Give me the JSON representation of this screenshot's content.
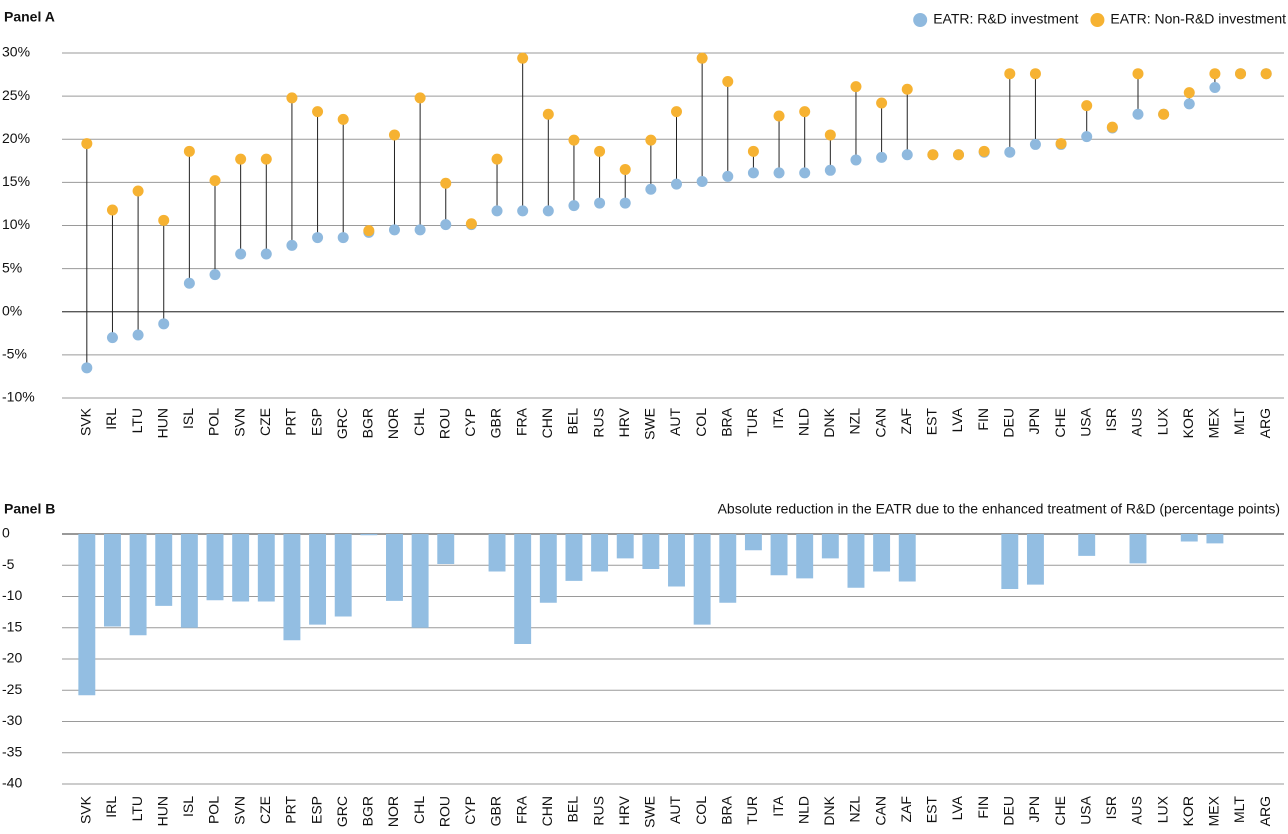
{
  "chart_data": [
    {
      "type": "dumbbell",
      "title": "Panel A",
      "legend": "top-right",
      "grid": true,
      "categories": [
        "SVK",
        "IRL",
        "LTU",
        "HUN",
        "ISL",
        "POL",
        "SVN",
        "CZE",
        "PRT",
        "ESP",
        "GRC",
        "BGR",
        "NOR",
        "CHL",
        "ROU",
        "CYP",
        "GBR",
        "FRA",
        "CHN",
        "BEL",
        "RUS",
        "HRV",
        "SWE",
        "AUT",
        "COL",
        "BRA",
        "TUR",
        "ITA",
        "NLD",
        "DNK",
        "NZL",
        "CAN",
        "ZAF",
        "EST",
        "LVA",
        "FIN",
        "DEU",
        "JPN",
        "CHE",
        "USA",
        "ISR",
        "AUS",
        "LUX",
        "KOR",
        "MEX",
        "MLT",
        "ARG"
      ],
      "series": [
        {
          "name": "EATR: R&D investment",
          "color": "#8fb9de",
          "values": [
            -6.5,
            -3.0,
            -2.7,
            -1.4,
            3.3,
            4.3,
            6.7,
            6.7,
            7.7,
            8.6,
            8.6,
            9.2,
            9.5,
            9.5,
            10.1,
            10.1,
            11.7,
            11.7,
            11.7,
            12.3,
            12.6,
            12.6,
            14.2,
            14.8,
            15.1,
            15.7,
            16.1,
            16.1,
            16.1,
            16.4,
            17.6,
            17.9,
            18.2,
            18.2,
            18.2,
            18.5,
            18.5,
            19.4,
            19.4,
            20.3,
            21.3,
            22.9,
            22.9,
            24.1,
            26.0,
            27.6,
            27.6
          ]
        },
        {
          "name": "EATR: Non-R&D investment",
          "color": "#f6b232",
          "values": [
            19.5,
            11.8,
            14.0,
            10.6,
            18.6,
            15.2,
            17.7,
            17.7,
            24.8,
            23.2,
            22.3,
            9.4,
            20.5,
            24.8,
            14.9,
            10.2,
            17.7,
            29.4,
            22.9,
            19.9,
            18.6,
            16.5,
            19.9,
            23.2,
            29.4,
            26.7,
            18.6,
            22.7,
            23.2,
            20.5,
            26.1,
            24.2,
            25.8,
            18.2,
            18.2,
            18.6,
            27.6,
            27.6,
            19.5,
            23.9,
            21.4,
            27.6,
            22.9,
            25.4,
            27.6,
            27.6,
            27.6
          ]
        }
      ],
      "ylim": [
        -10,
        30
      ],
      "yticks": [
        {
          "value": -10,
          "label": "-10%"
        },
        {
          "value": -5,
          "label": "-5%"
        },
        {
          "value": 0,
          "label": "0%"
        },
        {
          "value": 5,
          "label": "5%"
        },
        {
          "value": 10,
          "label": "10%"
        },
        {
          "value": 15,
          "label": "15%"
        },
        {
          "value": 20,
          "label": "20%"
        },
        {
          "value": 25,
          "label": "25%"
        },
        {
          "value": 30,
          "label": "30%"
        }
      ]
    },
    {
      "type": "bar",
      "title": "Panel B",
      "subtitle": "Absolute reduction in the EATR due to the enhanced treatment of R&D (percentage points)",
      "grid": true,
      "color": "#93bee2",
      "categories": [
        "SVK",
        "IRL",
        "LTU",
        "HUN",
        "ISL",
        "POL",
        "SVN",
        "CZE",
        "PRT",
        "ESP",
        "GRC",
        "BGR",
        "NOR",
        "CHL",
        "ROU",
        "CYP",
        "GBR",
        "FRA",
        "CHN",
        "BEL",
        "RUS",
        "HRV",
        "SWE",
        "AUT",
        "COL",
        "BRA",
        "TUR",
        "ITA",
        "NLD",
        "DNK",
        "NZL",
        "CAN",
        "ZAF",
        "EST",
        "LVA",
        "FIN",
        "DEU",
        "JPN",
        "CHE",
        "USA",
        "ISR",
        "AUS",
        "LUX",
        "KOR",
        "MEX",
        "MLT",
        "ARG"
      ],
      "values": [
        -25.8,
        -14.8,
        -16.2,
        -11.5,
        -15.0,
        -10.6,
        -10.8,
        -10.8,
        -17.0,
        -14.5,
        -13.2,
        -0.2,
        -10.7,
        -15.0,
        -4.8,
        0,
        -6.0,
        -17.6,
        -11.0,
        -7.5,
        -6.0,
        -3.9,
        -5.6,
        -8.4,
        -14.5,
        -11.0,
        -2.6,
        -6.6,
        -7.1,
        -3.9,
        -8.6,
        -6.0,
        -7.6,
        0,
        0,
        0,
        -8.8,
        -8.1,
        0,
        -3.5,
        0,
        -4.7,
        0,
        -1.2,
        -1.5,
        0,
        0
      ],
      "ylim": [
        -40,
        0
      ],
      "yticks": [
        -40,
        -35,
        -30,
        -25,
        -20,
        -15,
        -10,
        -5,
        0
      ]
    }
  ]
}
